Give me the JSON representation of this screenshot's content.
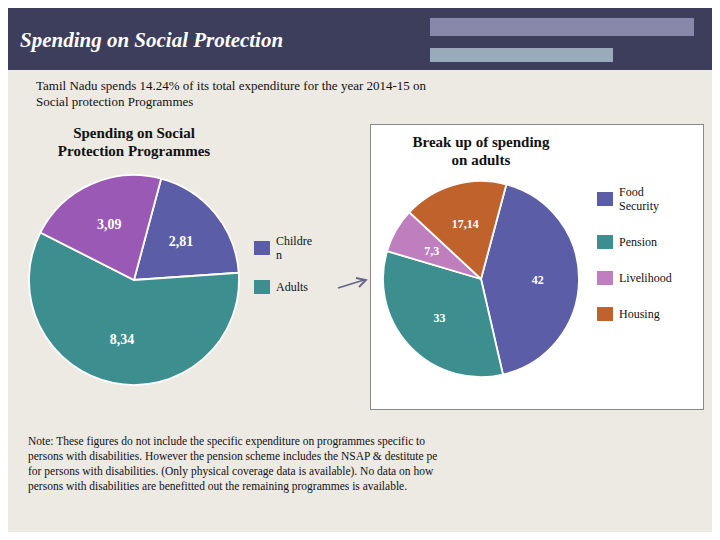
{
  "title": "Spending on Social Protection",
  "subtitle": "Tamil Nadu spends 14.24% of its total expenditure for the year 2014-15 on\nSocial protection Programmes",
  "annotations": [
    "Note: These figures do not include the specific expenditure on programmes specific to\npersons with disabilities. However the pension scheme includes the NSAP & destitute pe\nfor persons with disabilities. (Only physical coverage data is available). No data on how\npersons with disabilities are benefitted out the remaining programmes is available."
  ],
  "chart_data": [
    {
      "type": "pie",
      "title": "Spending on Social\nProtection Programmes",
      "categories": [
        "Childre\nn",
        "Adults",
        null
      ],
      "values": [
        2.81,
        8.34,
        3.09
      ],
      "value_labels": [
        "2,81",
        "8,34",
        "3,09"
      ],
      "colors": [
        "#5b5ea6",
        "#3d8f8f",
        "#9b59b6"
      ],
      "data_labels": true,
      "legend": "right"
    },
    {
      "type": "pie",
      "title": "Break up of spending\non adults",
      "categories": [
        "Food\nSecurity",
        "Pension",
        "Livelihood",
        "Housing"
      ],
      "values": [
        42,
        33,
        7.3,
        17.14
      ],
      "value_labels": [
        "42",
        "33",
        "7,3",
        "17,14"
      ],
      "colors": [
        "#5b5ea6",
        "#3d8f8f",
        "#bf7fbf",
        "#c0622c"
      ],
      "data_labels": true,
      "legend": "right"
    }
  ]
}
